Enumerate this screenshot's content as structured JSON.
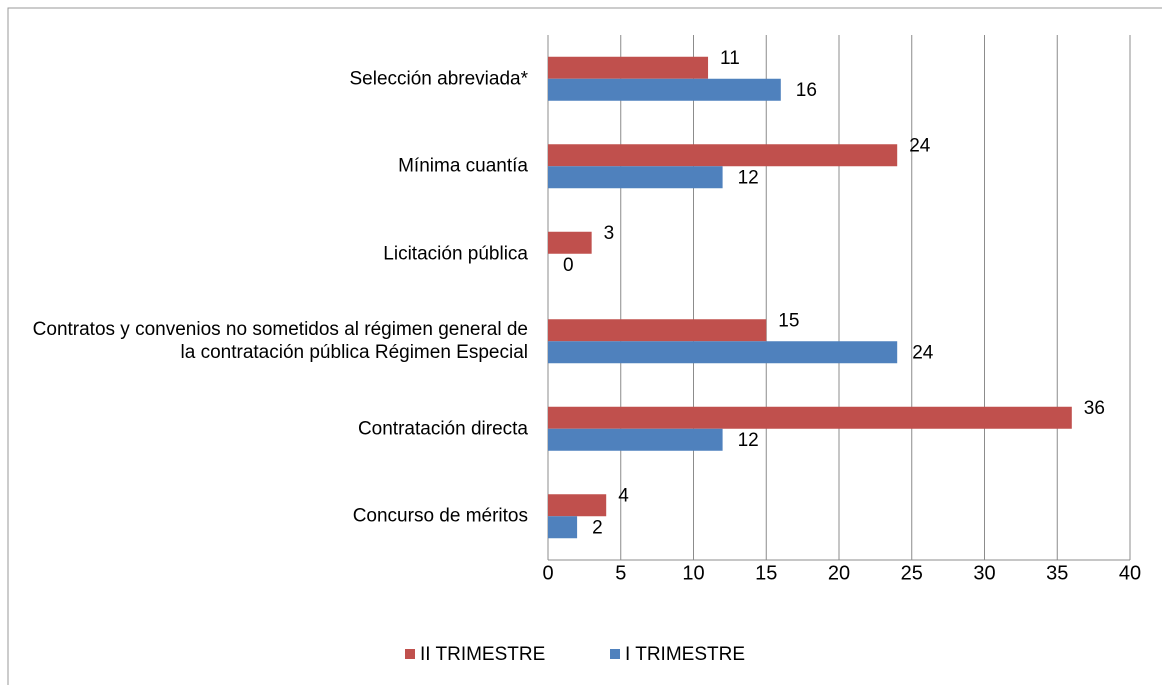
{
  "chart_data": {
    "type": "barh",
    "categories": [
      "Selección abreviada*",
      "Mínima cuantía",
      "Licitación pública",
      "Contratos y convenios no sometidos al régimen general de la contratación pública Régimen Especial",
      "Contratación directa",
      "Concurso de méritos"
    ],
    "series": [
      {
        "name": "II TRIMESTRE",
        "color": "#c0504d",
        "values": [
          11,
          24,
          3,
          15,
          36,
          4
        ]
      },
      {
        "name": "I TRIMESTRE",
        "color": "#4f81bd",
        "values": [
          16,
          12,
          0,
          24,
          12,
          2
        ]
      }
    ],
    "xlim": [
      0,
      40
    ],
    "xticks": [
      0,
      5,
      10,
      15,
      20,
      25,
      30,
      35,
      40
    ],
    "grid": true,
    "legend": "bottom"
  }
}
